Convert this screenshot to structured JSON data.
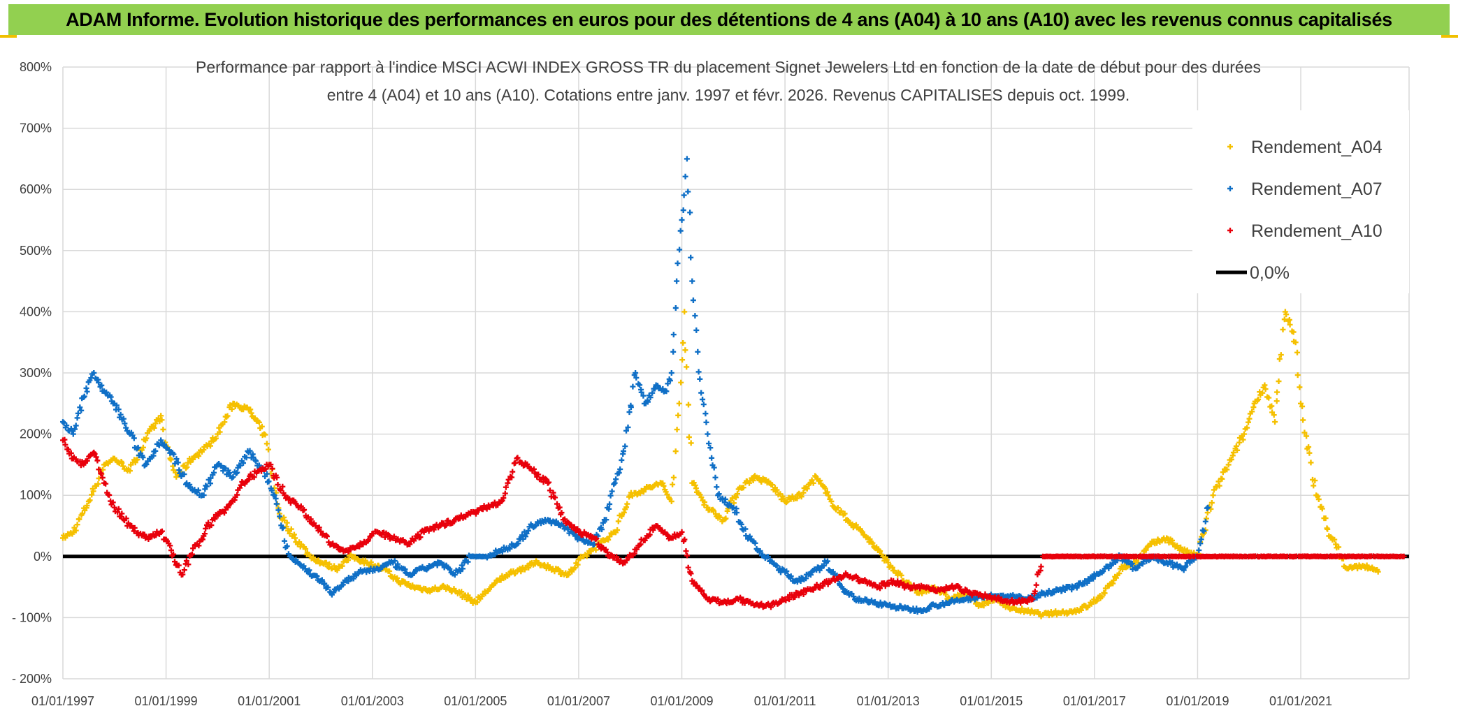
{
  "banner": {
    "title": "ADAM Informe. Evolution historique des performances en euros pour des détentions de 4 ans (A04) à 10 ans (A10) avec les revenus connus capitalisés"
  },
  "colors": {
    "A04": "#f5c000",
    "A07": "#0f6fc6",
    "A10": "#e8000b",
    "zero": "#000000",
    "grid": "#d9d9d9",
    "banner": "#92d050"
  },
  "chart_data": {
    "type": "scatter",
    "title_line1": "Performance par rapport à l'indice MSCI ACWI INDEX GROSS TR  du placement Signet Jewelers Ltd en fonction de la date de début pour des durées",
    "title_line2": "entre 4 (A04) et 10 ans (A10). Cotations entre janv. 1997 et févr. 2026. Revenus CAPITALISES depuis oct. 1999.",
    "y_ticks": [
      "800%",
      "700%",
      "600%",
      "500%",
      "400%",
      "300%",
      "200%",
      "100%",
      "0%",
      "- 100%",
      "- 200%"
    ],
    "y_tick_values": [
      800,
      700,
      600,
      500,
      400,
      300,
      200,
      100,
      0,
      -100,
      -200
    ],
    "ylim": [
      -200,
      800
    ],
    "x_ticks": [
      "01/01/1997",
      "01/01/1999",
      "01/01/2001",
      "01/01/2003",
      "01/01/2005",
      "01/01/2007",
      "01/01/2009",
      "01/01/2011",
      "01/01/2013",
      "01/01/2015",
      "01/01/2017",
      "01/01/2019",
      "01/01/2021"
    ],
    "x_tick_values": [
      1997,
      1999,
      2001,
      2003,
      2005,
      2007,
      2009,
      2011,
      2013,
      2015,
      2017,
      2019,
      2021
    ],
    "xlim": [
      1997,
      2023.1
    ],
    "legend_position": "top-right",
    "series": [
      {
        "name": "Rendement_A04",
        "x": [
          1997.0,
          1997.2,
          1997.5,
          1997.8,
          1998.0,
          1998.3,
          1998.6,
          1998.9,
          1999.0,
          1999.2,
          1999.5,
          1999.8,
          2000.0,
          2000.3,
          2000.6,
          2000.9,
          2001.2,
          2001.5,
          2001.8,
          2002.0,
          2002.3,
          2002.6,
          2002.9,
          2003.2,
          2003.5,
          2003.8,
          2004.1,
          2004.4,
          2004.7,
          2005.0,
          2005.3,
          2005.6,
          2005.9,
          2006.2,
          2006.5,
          2006.8,
          2007.1,
          2007.4,
          2007.7,
          2008.0,
          2008.3,
          2008.6,
          2008.8,
          2008.95,
          2009.05,
          2009.2,
          2009.5,
          2009.8,
          2010.1,
          2010.4,
          2010.7,
          2011.0,
          2011.3,
          2011.6,
          2011.9,
          2012.2,
          2012.5,
          2012.8,
          2013.0,
          2013.3,
          2013.6,
          2013.9,
          2014.2,
          2014.5,
          2014.8,
          2015.1,
          2015.4,
          2015.7,
          2016.0,
          2016.3,
          2016.6,
          2016.9,
          2017.2,
          2017.5,
          2017.8,
          2018.1,
          2018.4,
          2018.7,
          2019.0,
          2019.3,
          2019.6,
          2019.9,
          2020.1,
          2020.3,
          2020.5,
          2020.7,
          2020.9,
          2021.0,
          2021.3,
          2021.6,
          2021.9,
          2022.2,
          2022.5
        ],
        "y": [
          30,
          40,
          90,
          150,
          160,
          140,
          190,
          230,
          180,
          130,
          160,
          180,
          200,
          250,
          240,
          200,
          70,
          30,
          0,
          -10,
          -20,
          0,
          -10,
          -20,
          -40,
          -50,
          -55,
          -50,
          -60,
          -75,
          -50,
          -30,
          -20,
          -10,
          -20,
          -30,
          0,
          20,
          40,
          100,
          110,
          120,
          90,
          250,
          400,
          120,
          80,
          60,
          110,
          130,
          120,
          90,
          100,
          130,
          90,
          60,
          40,
          10,
          -10,
          -40,
          -60,
          -50,
          -70,
          -60,
          -80,
          -70,
          -85,
          -90,
          -95,
          -92,
          -90,
          -80,
          -60,
          -20,
          -10,
          20,
          30,
          10,
          0,
          100,
          150,
          200,
          250,
          280,
          220,
          400,
          350,
          250,
          100,
          30,
          -20,
          -15,
          -25
        ]
      },
      {
        "name": "Rendement_A07",
        "x": [
          1997.0,
          1997.2,
          1997.4,
          1997.6,
          1997.8,
          1998.0,
          1998.3,
          1998.6,
          1998.9,
          1999.1,
          1999.4,
          1999.7,
          2000.0,
          2000.3,
          2000.6,
          2000.9,
          2001.1,
          2001.4,
          2001.7,
          2002.0,
          2002.2,
          2002.5,
          2002.8,
          2003.1,
          2003.4,
          2003.7,
          2004.0,
          2004.3,
          2004.6,
          2004.9,
          2005.2,
          2005.5,
          2005.8,
          2006.1,
          2006.4,
          2006.7,
          2007.0,
          2007.3,
          2007.5,
          2007.7,
          2007.9,
          2008.1,
          2008.3,
          2008.5,
          2008.7,
          2008.8,
          2008.9,
          2009.0,
          2009.1,
          2009.2,
          2009.35,
          2009.5,
          2009.7,
          2010.0,
          2010.3,
          2010.6,
          2010.9,
          2011.2,
          2011.5,
          2011.8,
          2012.1,
          2012.4,
          2012.7,
          2013.0,
          2013.3,
          2013.6,
          2013.9,
          2014.2,
          2014.5,
          2014.8,
          2015.1,
          2015.4,
          2015.7,
          2016.0,
          2016.3,
          2016.6,
          2016.9,
          2017.2,
          2017.5,
          2017.8,
          2018.1,
          2018.4,
          2018.7,
          2019.0,
          2019.2
        ],
        "y": [
          220,
          200,
          260,
          300,
          270,
          250,
          200,
          150,
          190,
          170,
          120,
          100,
          150,
          130,
          170,
          140,
          100,
          0,
          -20,
          -40,
          -60,
          -40,
          -25,
          -20,
          -10,
          -30,
          -20,
          -10,
          -30,
          0,
          0,
          10,
          20,
          50,
          60,
          50,
          30,
          20,
          60,
          120,
          180,
          300,
          250,
          280,
          270,
          300,
          450,
          550,
          650,
          450,
          290,
          200,
          100,
          80,
          30,
          0,
          -20,
          -40,
          -30,
          -10,
          -50,
          -70,
          -75,
          -80,
          -85,
          -88,
          -80,
          -75,
          -70,
          -65,
          -65,
          -65,
          -70,
          -60,
          -55,
          -50,
          -40,
          -20,
          0,
          -20,
          0,
          -10,
          -20,
          0,
          80
        ]
      },
      {
        "name": "Rendement_A10",
        "x": [
          1997.0,
          1997.2,
          1997.4,
          1997.6,
          1997.8,
          1998.0,
          1998.3,
          1998.6,
          1998.9,
          1999.1,
          1999.3,
          1999.6,
          1999.9,
          2000.2,
          2000.5,
          2000.8,
          2001.0,
          2001.3,
          2001.6,
          2001.9,
          2002.2,
          2002.5,
          2002.8,
          2003.1,
          2003.4,
          2003.7,
          2004.0,
          2004.3,
          2004.6,
          2004.9,
          2005.2,
          2005.5,
          2005.8,
          2006.1,
          2006.4,
          2006.7,
          2007.0,
          2007.3,
          2007.6,
          2007.9,
          2008.2,
          2008.5,
          2008.8,
          2009.0,
          2009.2,
          2009.5,
          2009.8,
          2010.1,
          2010.4,
          2010.7,
          2011.0,
          2011.3,
          2011.6,
          2011.9,
          2012.2,
          2012.5,
          2012.8,
          2013.1,
          2013.4,
          2013.7,
          2014.0,
          2014.3,
          2014.6,
          2014.9,
          2015.2,
          2015.5,
          2015.8,
          2016.0,
          2016.3,
          2016.6,
          2017.0,
          2017.5,
          2018.0,
          2018.5,
          2019.0,
          2019.5,
          2020.0,
          2020.5,
          2021.0,
          2021.5,
          2022.0,
          2022.5,
          2023.0
        ],
        "y": [
          190,
          160,
          150,
          170,
          120,
          80,
          50,
          30,
          40,
          10,
          -30,
          20,
          60,
          80,
          120,
          140,
          150,
          100,
          80,
          50,
          20,
          10,
          20,
          40,
          30,
          20,
          40,
          50,
          60,
          70,
          80,
          90,
          160,
          140,
          120,
          60,
          40,
          30,
          0,
          -10,
          20,
          50,
          30,
          40,
          -40,
          -70,
          -75,
          -70,
          -80,
          -80,
          -70,
          -60,
          -50,
          -40,
          -30,
          -40,
          -50,
          -40,
          -50,
          -50,
          -55,
          -50,
          -60,
          -65,
          -70,
          -75,
          -70,
          0,
          0,
          0,
          0,
          0,
          0,
          0,
          0,
          0,
          0,
          0,
          0,
          0,
          0,
          0,
          0
        ]
      }
    ],
    "zero_line": {
      "name": "0,0%",
      "value": 0
    },
    "legend": [
      {
        "key": "A04",
        "label": "Rendement_A04"
      },
      {
        "key": "A07",
        "label": "Rendement_A07"
      },
      {
        "key": "A10",
        "label": "Rendement_A10"
      },
      {
        "key": "zero",
        "label": "0,0%"
      }
    ]
  }
}
